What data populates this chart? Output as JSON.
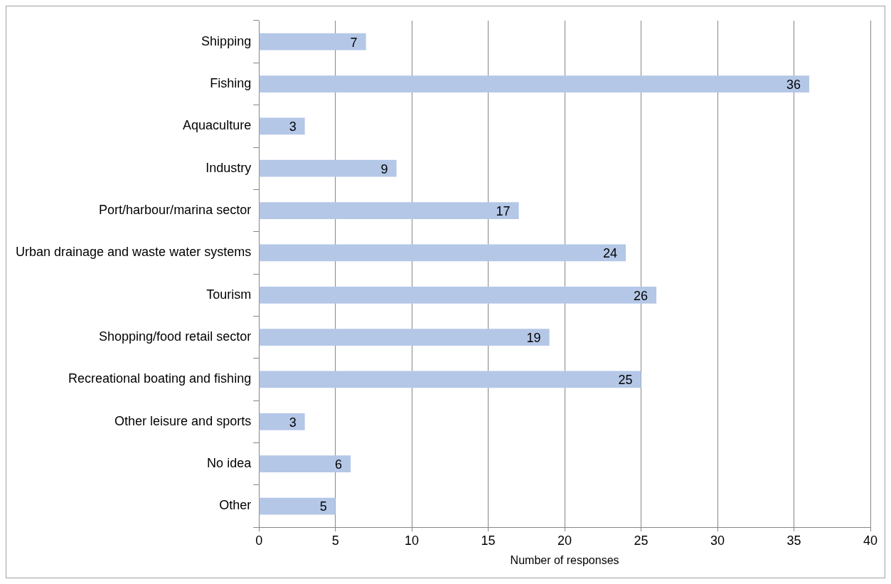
{
  "chart_data": {
    "type": "bar",
    "orientation": "horizontal",
    "categories": [
      "Shipping",
      "Fishing",
      "Aquaculture",
      "Industry",
      "Port/harbour/marina sector",
      "Urban drainage and waste water systems",
      "Tourism",
      "Shopping/food retail sector",
      "Recreational boating and fishing",
      "Other leisure and sports",
      "No idea",
      "Other"
    ],
    "values": [
      7,
      36,
      3,
      9,
      17,
      24,
      26,
      19,
      25,
      3,
      6,
      5
    ],
    "color": "#b4c7e7",
    "xlim": [
      0,
      40
    ],
    "xticks": [
      0,
      5,
      10,
      15,
      20,
      25,
      30,
      35,
      40
    ],
    "xlabel": "Number of responses",
    "grid": "x",
    "legend": false,
    "data_labels": true
  }
}
